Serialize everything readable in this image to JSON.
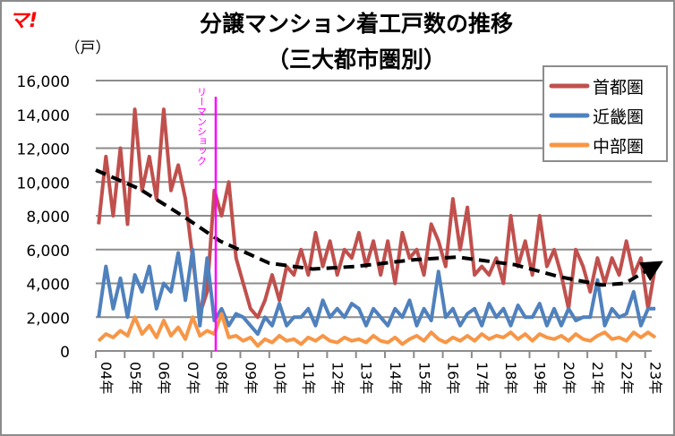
{
  "logo": "マ!",
  "chart_data": {
    "type": "line",
    "title": "分譲マンション着工戸数の推移",
    "subtitle": "（三大都市圏別）",
    "ylabel": "（戸）",
    "ylim": [
      0,
      16000
    ],
    "yticks": [
      0,
      2000,
      4000,
      6000,
      8000,
      10000,
      12000,
      14000,
      16000
    ],
    "ytick_labels": [
      "0",
      "2,000",
      "4,000",
      "6,000",
      "8,000",
      "10,000",
      "12,000",
      "14,000",
      "16,000"
    ],
    "xtick_labels": [
      "04年",
      "05年",
      "06年",
      "07年",
      "08年",
      "09年",
      "10年",
      "11年",
      "12年",
      "13年",
      "14年",
      "15年",
      "16年",
      "17年",
      "18年",
      "19年",
      "20年",
      "21年",
      "22年",
      "23年"
    ],
    "x_interval": "quarterly from 2004",
    "grid": true,
    "legend_placement": "top-right",
    "series": [
      {
        "name": "首都圏",
        "color": "#c0504d",
        "values": [
          7500,
          11500,
          8000,
          12000,
          7500,
          14300,
          9500,
          11500,
          9000,
          14300,
          9500,
          11000,
          9000,
          5500,
          2200,
          3500,
          9500,
          8000,
          10000,
          5500,
          4000,
          2500,
          2000,
          3000,
          4500,
          3000,
          5000,
          4500,
          6000,
          4500,
          7000,
          5000,
          6500,
          4500,
          6000,
          5500,
          7000,
          5000,
          6500,
          4500,
          6500,
          4000,
          7000,
          5500,
          6000,
          4500,
          7500,
          6500,
          5000,
          9000,
          6000,
          8500,
          4500,
          5000,
          4500,
          5500,
          4000,
          8000,
          5000,
          6500,
          4500,
          8000,
          5000,
          6000,
          4500,
          2500,
          6000,
          5000,
          3500,
          5500,
          4000,
          5500,
          4500,
          6500,
          4500,
          5500,
          2500,
          5000
        ]
      },
      {
        "name": "近畿圏",
        "color": "#4f81bd",
        "values": [
          2000,
          5000,
          2500,
          4300,
          2000,
          4500,
          3500,
          5000,
          2500,
          4000,
          3500,
          5800,
          3000,
          6000,
          1500,
          5500,
          1800,
          2500,
          1500,
          2200,
          2000,
          1500,
          1000,
          2000,
          1500,
          2800,
          1500,
          2000,
          2000,
          2500,
          1500,
          3000,
          2000,
          2500,
          2000,
          2800,
          2500,
          1500,
          2500,
          2000,
          1500,
          2500,
          2000,
          3000,
          1500,
          2500,
          1800,
          4700,
          2000,
          2500,
          1500,
          2200,
          2500,
          1500,
          2800,
          2000,
          2500,
          1500,
          2700,
          2000,
          2000,
          2800,
          1500,
          2500,
          1500,
          2500,
          1800,
          2000,
          2000,
          4200,
          1500,
          2500,
          2000,
          2200,
          3500,
          1500,
          2500,
          2500
        ]
      },
      {
        "name": "中部圏",
        "color": "#f79646",
        "values": [
          600,
          1000,
          800,
          1200,
          900,
          2000,
          1000,
          1500,
          800,
          1800,
          900,
          1400,
          700,
          2000,
          900,
          1200,
          1000,
          2200,
          800,
          900,
          600,
          800,
          300,
          700,
          500,
          900,
          600,
          700,
          400,
          800,
          600,
          900,
          600,
          500,
          800,
          600,
          700,
          500,
          900,
          600,
          500,
          800,
          400,
          700,
          900,
          600,
          1100,
          700,
          500,
          800,
          600,
          900,
          600,
          1000,
          700,
          900,
          800,
          1100,
          700,
          1000,
          600,
          1000,
          800,
          700,
          900,
          600,
          1000,
          700,
          600,
          900,
          1100,
          700,
          800,
          600,
          1100,
          800,
          1100,
          800
        ]
      }
    ],
    "trend": {
      "style": "dashed",
      "color": "#000000",
      "points": [
        [
          2004,
          10700
        ],
        [
          2005.5,
          9600
        ],
        [
          2007,
          8000
        ],
        [
          2008.3,
          6500
        ],
        [
          2010,
          5200
        ],
        [
          2011.5,
          4850
        ],
        [
          2013,
          5000
        ],
        [
          2015,
          5400
        ],
        [
          2016.5,
          5550
        ],
        [
          2018.5,
          5100
        ],
        [
          2020,
          4400
        ],
        [
          2021.5,
          3900
        ],
        [
          2022.3,
          4000
        ],
        [
          2023.3,
          5000
        ]
      ]
    },
    "annotation": {
      "label": "リーマンショック",
      "color": "#ff00ff"
    }
  }
}
